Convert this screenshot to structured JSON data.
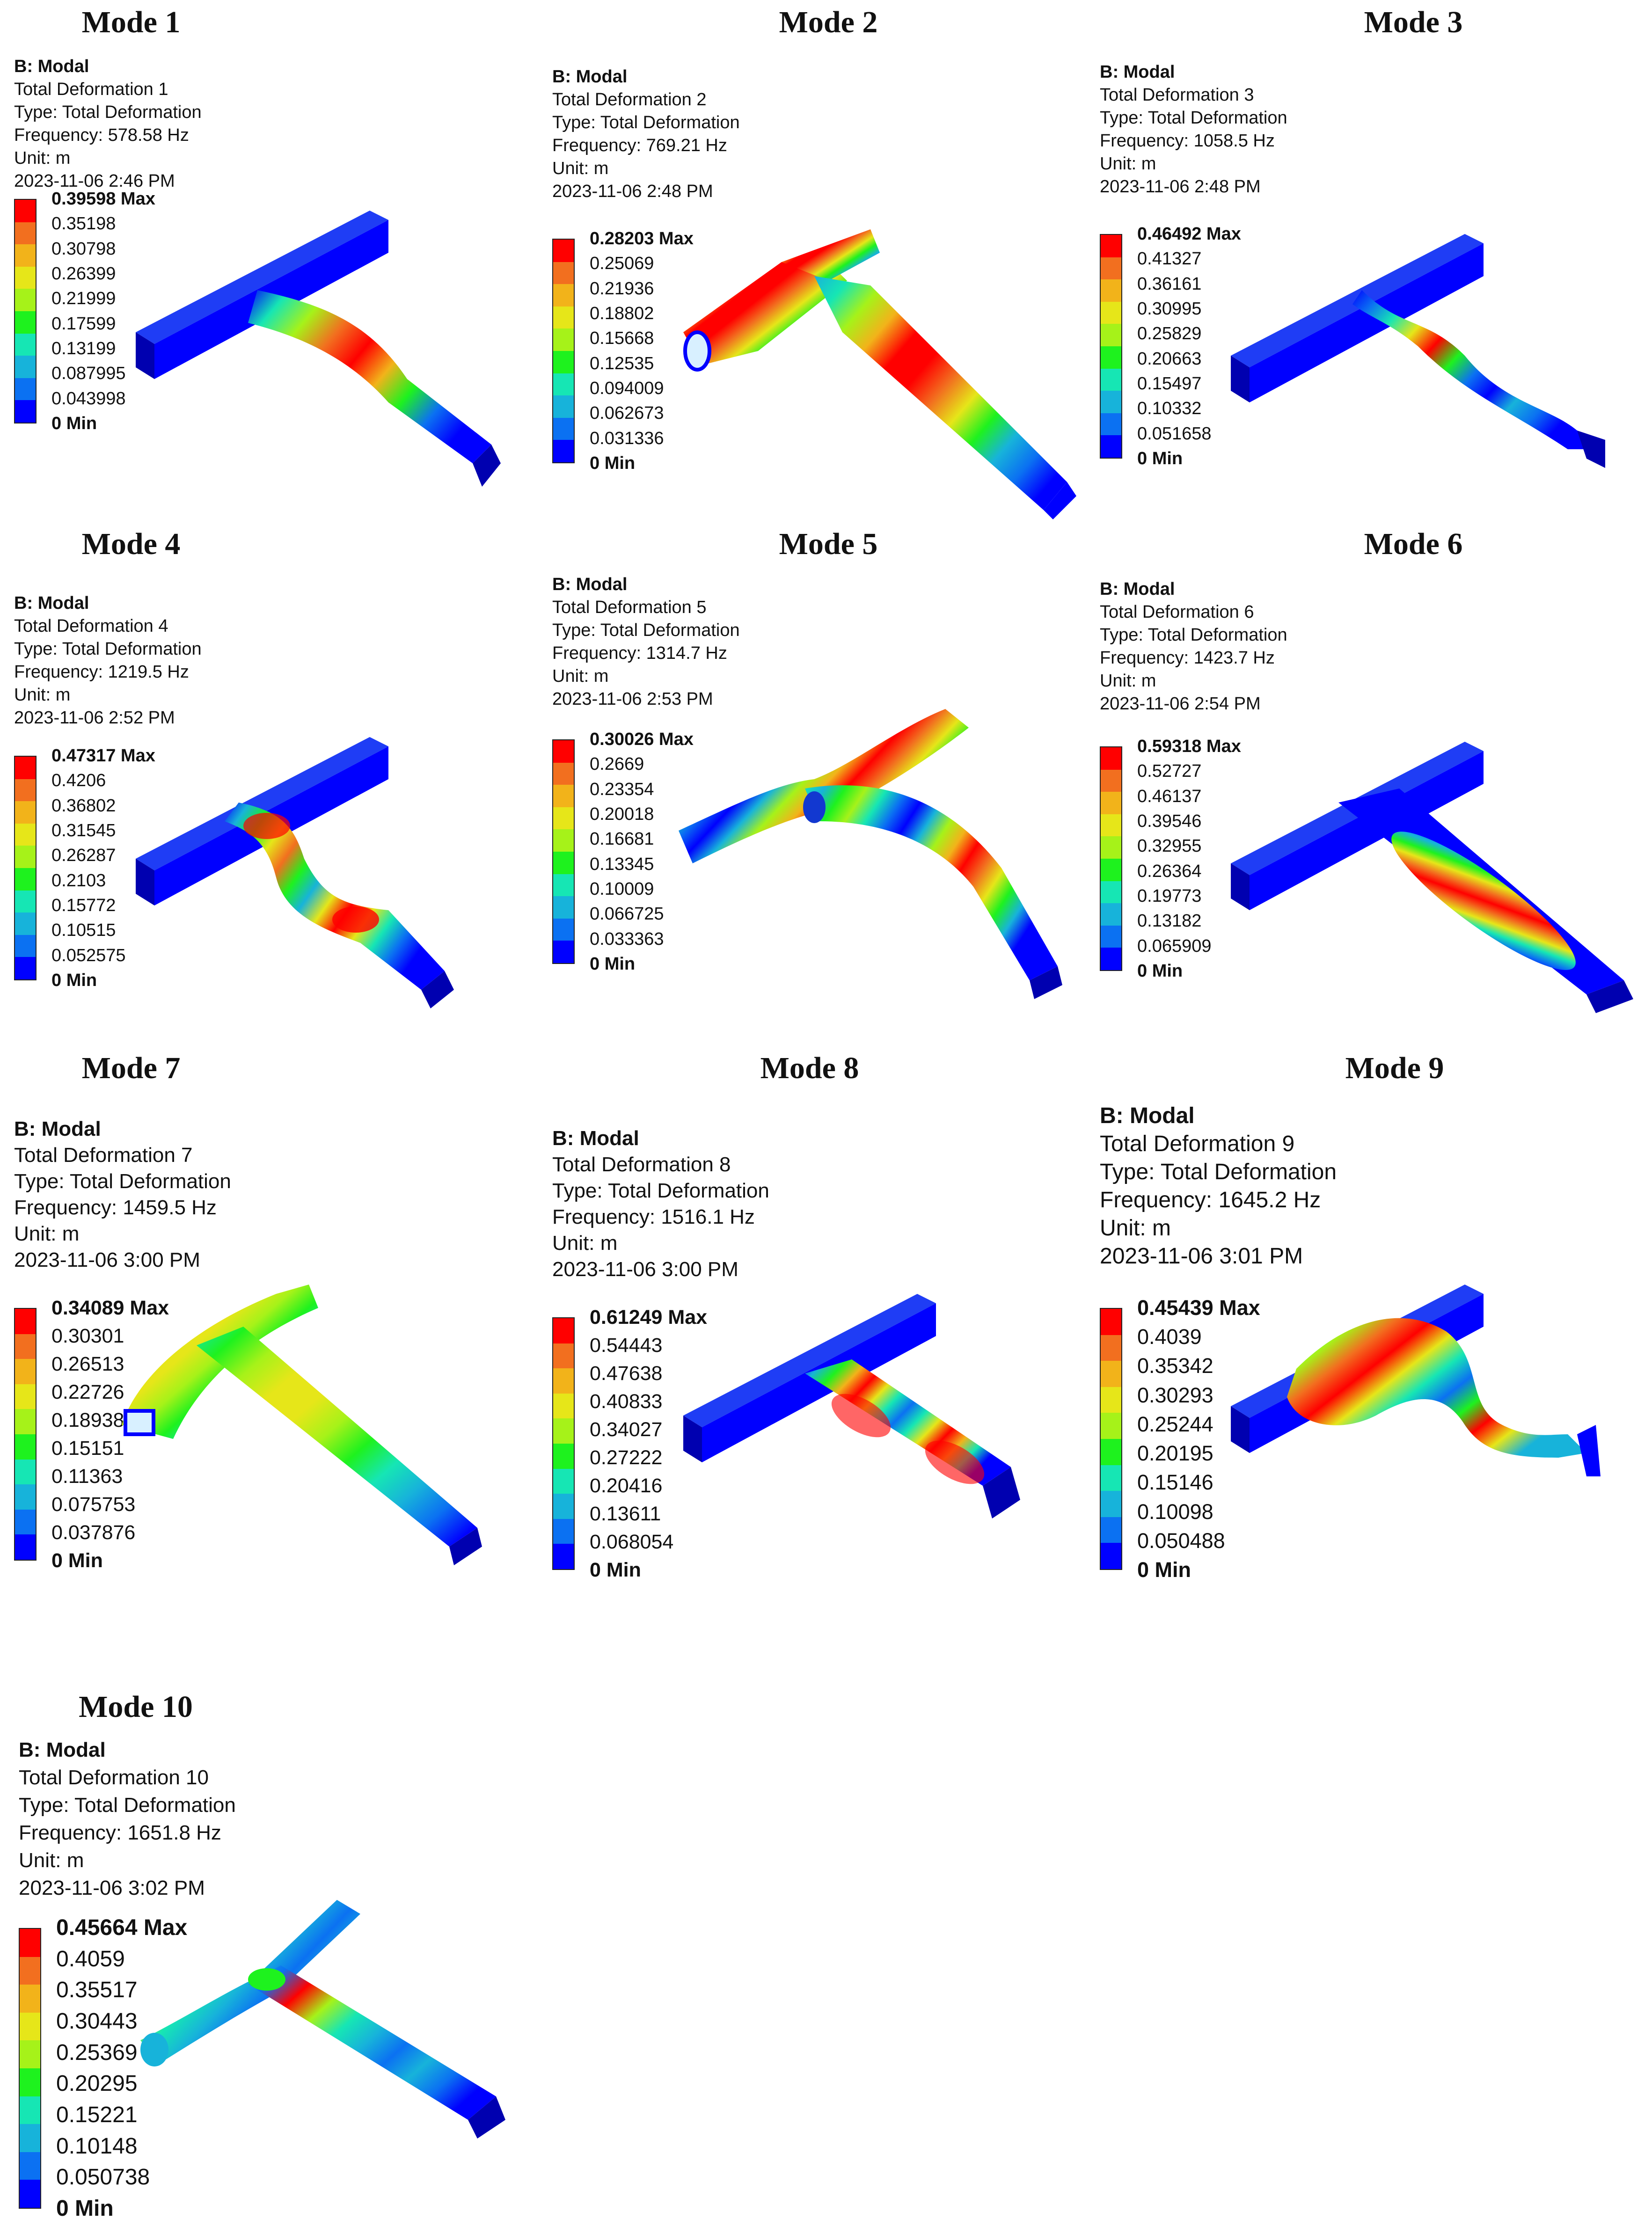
{
  "colors": [
    "#0000ff",
    "#0b71f2",
    "#17b3da",
    "#16e6b4",
    "#1ef21e",
    "#a6f219",
    "#e6e619",
    "#f2b31a",
    "#f26f1f",
    "#ff0000"
  ],
  "modes": [
    {
      "title": "Mode 1",
      "analysis": "B: Modal",
      "name": "Total Deformation 1",
      "type": "Type: Total Deformation",
      "frequency": "Frequency: 578.58 Hz",
      "unit": "Unit: m",
      "date": "2023-11-06 2:46 PM",
      "legend": [
        "0.39598 Max",
        "0.35198",
        "0.30798",
        "0.26399",
        "0.21999",
        "0.17599",
        "0.13199",
        "0.087995",
        "0.043998",
        "0 Min"
      ]
    },
    {
      "title": "Mode 2",
      "analysis": "B: Modal",
      "name": "Total Deformation 2",
      "type": "Type: Total Deformation",
      "frequency": "Frequency: 769.21 Hz",
      "unit": "Unit: m",
      "date": "2023-11-06 2:48 PM",
      "legend": [
        "0.28203 Max",
        "0.25069",
        "0.21936",
        "0.18802",
        "0.15668",
        "0.12535",
        "0.094009",
        "0.062673",
        "0.031336",
        "0 Min"
      ]
    },
    {
      "title": "Mode 3",
      "analysis": "B: Modal",
      "name": "Total Deformation 3",
      "type": "Type: Total Deformation",
      "frequency": "Frequency: 1058.5 Hz",
      "unit": "Unit: m",
      "date": "2023-11-06 2:48 PM",
      "legend": [
        "0.46492 Max",
        "0.41327",
        "0.36161",
        "0.30995",
        "0.25829",
        "0.20663",
        "0.15497",
        "0.10332",
        "0.051658",
        "0 Min"
      ]
    },
    {
      "title": "Mode 4",
      "analysis": "B: Modal",
      "name": "Total Deformation 4",
      "type": "Type: Total Deformation",
      "frequency": "Frequency: 1219.5 Hz",
      "unit": "Unit: m",
      "date": "2023-11-06 2:52 PM",
      "legend": [
        "0.47317 Max",
        "0.4206",
        "0.36802",
        "0.31545",
        "0.26287",
        "0.2103",
        "0.15772",
        "0.10515",
        "0.052575",
        "0 Min"
      ]
    },
    {
      "title": "Mode 5",
      "analysis": "B: Modal",
      "name": "Total Deformation 5",
      "type": "Type: Total Deformation",
      "frequency": "Frequency: 1314.7 Hz",
      "unit": "Unit: m",
      "date": "2023-11-06 2:53 PM",
      "legend": [
        "0.30026 Max",
        "0.2669",
        "0.23354",
        "0.20018",
        "0.16681",
        "0.13345",
        "0.10009",
        "0.066725",
        "0.033363",
        "0 Min"
      ]
    },
    {
      "title": "Mode 6",
      "analysis": "B: Modal",
      "name": "Total Deformation 6",
      "type": "Type: Total Deformation",
      "frequency": "Frequency: 1423.7 Hz",
      "unit": "Unit: m",
      "date": "2023-11-06 2:54 PM",
      "legend": [
        "0.59318 Max",
        "0.52727",
        "0.46137",
        "0.39546",
        "0.32955",
        "0.26364",
        "0.19773",
        "0.13182",
        "0.065909",
        "0 Min"
      ]
    },
    {
      "title": "Mode 7",
      "analysis": "B: Modal",
      "name": "Total Deformation 7",
      "type": "Type: Total Deformation",
      "frequency": "Frequency: 1459.5 Hz",
      "unit": "Unit: m",
      "date": "2023-11-06 3:00 PM",
      "legend": [
        "0.34089 Max",
        "0.30301",
        "0.26513",
        "0.22726",
        "0.18938",
        "0.15151",
        "0.11363",
        "0.075753",
        "0.037876",
        "0 Min"
      ]
    },
    {
      "title": "Mode 8",
      "analysis": "B: Modal",
      "name": "Total Deformation 8",
      "type": "Type: Total Deformation",
      "frequency": "Frequency: 1516.1 Hz",
      "unit": "Unit: m",
      "date": "2023-11-06 3:00 PM",
      "legend": [
        "0.61249 Max",
        "0.54443",
        "0.47638",
        "0.40833",
        "0.34027",
        "0.27222",
        "0.20416",
        "0.13611",
        "0.068054",
        "0 Min"
      ]
    },
    {
      "title": "Mode 9",
      "analysis": "B: Modal",
      "name": "Total Deformation 9",
      "type": "Type: Total Deformation",
      "frequency": "Frequency: 1645.2 Hz",
      "unit": "Unit: m",
      "date": "2023-11-06 3:01 PM",
      "legend": [
        "0.45439 Max",
        "0.4039",
        "0.35342",
        "0.30293",
        "0.25244",
        "0.20195",
        "0.15146",
        "0.10098",
        "0.050488",
        "0 Min"
      ]
    },
    {
      "title": "Mode 10",
      "analysis": "B: Modal",
      "name": "Total Deformation 10",
      "type": "Type: Total Deformation",
      "frequency": "Frequency: 1651.8 Hz",
      "unit": "Unit: m",
      "date": "2023-11-06 3:02 PM",
      "legend": [
        "0.45664 Max",
        "0.4059",
        "0.35517",
        "0.30443",
        "0.25369",
        "0.20295",
        "0.15221",
        "0.10148",
        "0.050738",
        "0 Min"
      ]
    }
  ]
}
